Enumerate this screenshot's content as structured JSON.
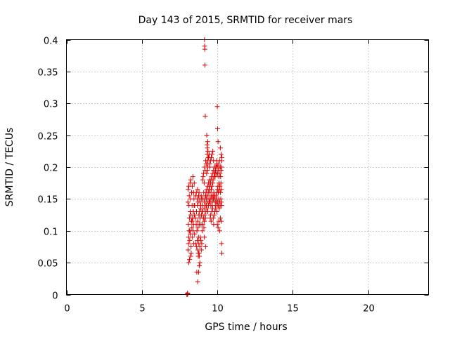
{
  "chart_data": {
    "type": "scatter",
    "title": "Day 143 of 2015, SRMTID for receiver mars",
    "xlabel": "GPS time / hours",
    "ylabel": "SRMTID / TECUs",
    "xlim": [
      0,
      24
    ],
    "ylim": [
      0,
      0.4
    ],
    "xticks": [
      0,
      5,
      10,
      15,
      20
    ],
    "yticks": [
      0,
      0.05,
      0.1,
      0.15,
      0.2,
      0.25,
      0.3,
      0.35,
      0.4
    ],
    "xtick_labels": [
      "0",
      "5",
      "10",
      "15",
      "20"
    ],
    "ytick_labels": [
      "0",
      "0.05",
      "0.1",
      "0.15",
      "0.2",
      "0.25",
      "0.3",
      "0.35",
      "0.4"
    ],
    "grid": true,
    "marker": "+",
    "color": "#e00000",
    "series": [
      {
        "name": "SRMTID",
        "x": [
          7.98,
          8.0,
          8.02,
          8.04,
          8.05,
          8.08,
          8.1,
          8.12,
          8.15,
          8.18,
          8.2,
          8.22,
          8.25,
          8.28,
          8.3,
          8.33,
          8.36,
          8.4,
          8.42,
          8.45,
          8.48,
          8.5,
          8.06,
          8.09,
          8.13,
          8.17,
          8.21,
          8.26,
          8.31,
          8.35,
          8.39,
          8.44,
          8.49,
          8.07,
          8.11,
          8.14,
          8.19,
          8.24,
          8.29,
          8.34,
          8.38,
          8.43,
          8.47,
          8.1,
          8.16,
          8.23,
          8.27,
          8.32,
          8.37,
          8.41,
          8.46,
          8.55,
          8.6,
          8.62,
          8.65,
          8.68,
          8.7,
          8.72,
          8.75,
          8.78,
          8.8,
          8.82,
          8.85,
          8.88,
          8.9,
          8.92,
          8.95,
          8.98,
          8.58,
          8.63,
          8.67,
          8.71,
          8.74,
          8.77,
          8.81,
          8.84,
          8.87,
          8.91,
          8.94,
          8.97,
          8.56,
          8.61,
          8.66,
          8.69,
          8.73,
          8.76,
          8.79,
          8.83,
          8.86,
          8.89,
          8.93,
          8.96,
          8.64,
          8.7,
          8.76,
          8.8,
          8.84,
          8.74,
          8.79,
          9.0,
          9.02,
          9.05,
          9.08,
          9.1,
          9.12,
          9.15,
          9.18,
          9.2,
          9.22,
          9.25,
          9.28,
          9.3,
          9.33,
          9.36,
          9.4,
          9.42,
          9.45,
          9.48,
          9.01,
          9.04,
          9.07,
          9.11,
          9.14,
          9.17,
          9.21,
          9.24,
          9.27,
          9.31,
          9.34,
          9.37,
          9.41,
          9.44,
          9.47,
          9.03,
          9.06,
          9.09,
          9.13,
          9.16,
          9.19,
          9.23,
          9.26,
          9.29,
          9.32,
          9.35,
          9.38,
          9.43,
          9.46,
          9.49,
          9.15,
          9.16,
          9.17,
          9.18,
          9.2,
          9.22,
          9.14,
          9.3,
          9.32,
          9.34,
          9.36,
          9.33,
          9.35,
          9.38,
          9.4,
          9.5,
          9.52,
          9.55,
          9.58,
          9.6,
          9.62,
          9.65,
          9.68,
          9.7,
          9.72,
          9.75,
          9.78,
          9.8,
          9.82,
          9.85,
          9.88,
          9.9,
          9.92,
          9.95,
          9.98,
          9.51,
          9.54,
          9.57,
          9.61,
          9.64,
          9.67,
          9.71,
          9.74,
          9.77,
          9.81,
          9.84,
          9.87,
          9.91,
          9.94,
          9.97,
          9.53,
          9.56,
          9.59,
          9.63,
          9.66,
          9.69,
          9.73,
          9.76,
          9.79,
          9.83,
          9.86,
          9.89,
          9.93,
          9.96,
          9.99,
          9.5,
          9.55,
          9.6,
          9.65,
          9.7,
          9.75,
          9.8,
          9.85,
          9.9,
          9.95,
          10.0,
          10.02,
          10.05,
          10.08,
          10.1,
          10.12,
          10.15,
          10.18,
          10.2,
          10.22,
          10.25,
          10.28,
          10.3,
          10.01,
          10.04,
          10.07,
          10.11,
          10.14,
          10.17,
          10.21,
          10.24,
          10.27,
          10.03,
          10.06,
          10.09,
          10.13,
          10.16,
          10.19,
          10.23,
          10.26,
          10.29,
          10.0,
          10.05,
          10.1,
          10.15,
          10.2,
          10.25,
          10.0,
          10.02,
          10.05,
          10.2,
          10.25,
          10.3,
          10.28,
          10.3
        ],
        "y": [
          0.0,
          0.0,
          0.002,
          0.001,
          0.145,
          0.11,
          0.09,
          0.14,
          0.12,
          0.1,
          0.13,
          0.15,
          0.125,
          0.115,
          0.16,
          0.14,
          0.12,
          0.13,
          0.11,
          0.15,
          0.125,
          0.14,
          0.07,
          0.08,
          0.1,
          0.085,
          0.095,
          0.075,
          0.105,
          0.09,
          0.1,
          0.08,
          0.095,
          0.165,
          0.17,
          0.155,
          0.175,
          0.18,
          0.16,
          0.17,
          0.185,
          0.16,
          0.175,
          0.05,
          0.055,
          0.06,
          0.065,
          0.115,
          0.12,
          0.13,
          0.14,
          0.12,
          0.11,
          0.13,
          0.1,
          0.14,
          0.115,
          0.105,
          0.09,
          0.125,
          0.11,
          0.13,
          0.12,
          0.14,
          0.135,
          0.11,
          0.125,
          0.13,
          0.08,
          0.075,
          0.085,
          0.07,
          0.065,
          0.08,
          0.06,
          0.075,
          0.09,
          0.085,
          0.07,
          0.08,
          0.155,
          0.16,
          0.15,
          0.165,
          0.145,
          0.155,
          0.16,
          0.15,
          0.145,
          0.14,
          0.155,
          0.15,
          0.035,
          0.02,
          0.035,
          0.045,
          0.05,
          0.06,
          0.065,
          0.14,
          0.13,
          0.15,
          0.12,
          0.16,
          0.135,
          0.145,
          0.15,
          0.14,
          0.155,
          0.16,
          0.15,
          0.165,
          0.155,
          0.17,
          0.16,
          0.175,
          0.165,
          0.18,
          0.1,
          0.11,
          0.12,
          0.105,
          0.115,
          0.125,
          0.12,
          0.13,
          0.14,
          0.135,
          0.145,
          0.13,
          0.14,
          0.15,
          0.145,
          0.18,
          0.185,
          0.19,
          0.175,
          0.2,
          0.195,
          0.21,
          0.205,
          0.19,
          0.2,
          0.21,
          0.205,
          0.215,
          0.22,
          0.2,
          0.4,
          0.39,
          0.385,
          0.36,
          0.28,
          0.075,
          0.09,
          0.25,
          0.235,
          0.23,
          0.24,
          0.22,
          0.195,
          0.225,
          0.215,
          0.17,
          0.16,
          0.175,
          0.18,
          0.165,
          0.185,
          0.17,
          0.19,
          0.175,
          0.18,
          0.195,
          0.185,
          0.2,
          0.19,
          0.185,
          0.195,
          0.2,
          0.19,
          0.21,
          0.2,
          0.145,
          0.15,
          0.14,
          0.155,
          0.15,
          0.145,
          0.155,
          0.15,
          0.16,
          0.155,
          0.15,
          0.145,
          0.155,
          0.15,
          0.16,
          0.12,
          0.125,
          0.115,
          0.13,
          0.14,
          0.135,
          0.12,
          0.11,
          0.125,
          0.13,
          0.14,
          0.135,
          0.145,
          0.13,
          0.14,
          0.205,
          0.21,
          0.215,
          0.22,
          0.225,
          0.21,
          0.2,
          0.19,
          0.2,
          0.205,
          0.2,
          0.19,
          0.205,
          0.195,
          0.185,
          0.2,
          0.21,
          0.19,
          0.2,
          0.185,
          0.195,
          0.2,
          0.21,
          0.165,
          0.17,
          0.16,
          0.175,
          0.165,
          0.17,
          0.16,
          0.175,
          0.165,
          0.145,
          0.14,
          0.15,
          0.135,
          0.145,
          0.14,
          0.15,
          0.145,
          0.14,
          0.11,
          0.105,
          0.115,
          0.1,
          0.12,
          0.115,
          0.295,
          0.26,
          0.24,
          0.23,
          0.22,
          0.215,
          0.08,
          0.065
        ]
      }
    ]
  }
}
